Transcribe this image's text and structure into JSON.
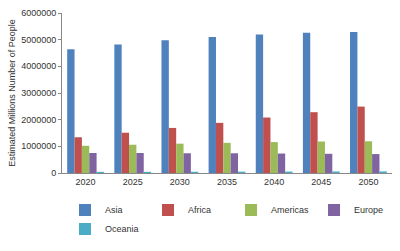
{
  "chart_data": {
    "type": "bar",
    "y_label": "Estimated Millions Number of People",
    "categories": [
      "2020",
      "2025",
      "2030",
      "2035",
      "2040",
      "2045",
      "2050"
    ],
    "series": [
      {
        "name": "Asia",
        "color": "#4F81BD",
        "values": [
          4640000,
          4820000,
          4980000,
          5100000,
          5190000,
          5260000,
          5290000
        ]
      },
      {
        "name": "Africa",
        "color": "#C0504D",
        "values": [
          1340000,
          1510000,
          1690000,
          1880000,
          2080000,
          2280000,
          2490000
        ]
      },
      {
        "name": "Americas",
        "color": "#9BBB59",
        "values": [
          1020000,
          1060000,
          1100000,
          1130000,
          1160000,
          1180000,
          1190000
        ]
      },
      {
        "name": "Europe",
        "color": "#8064A2",
        "values": [
          750000,
          750000,
          740000,
          740000,
          730000,
          720000,
          710000
        ]
      },
      {
        "name": "Oceania",
        "color": "#4BACC6",
        "values": [
          43000,
          45000,
          48000,
          51000,
          54000,
          57000,
          60000
        ]
      }
    ],
    "ylim": [
      0,
      6000000
    ],
    "yticks": [
      0,
      1000000,
      2000000,
      3000000,
      4000000,
      5000000,
      6000000
    ],
    "grid": false,
    "legend": "bottom"
  }
}
